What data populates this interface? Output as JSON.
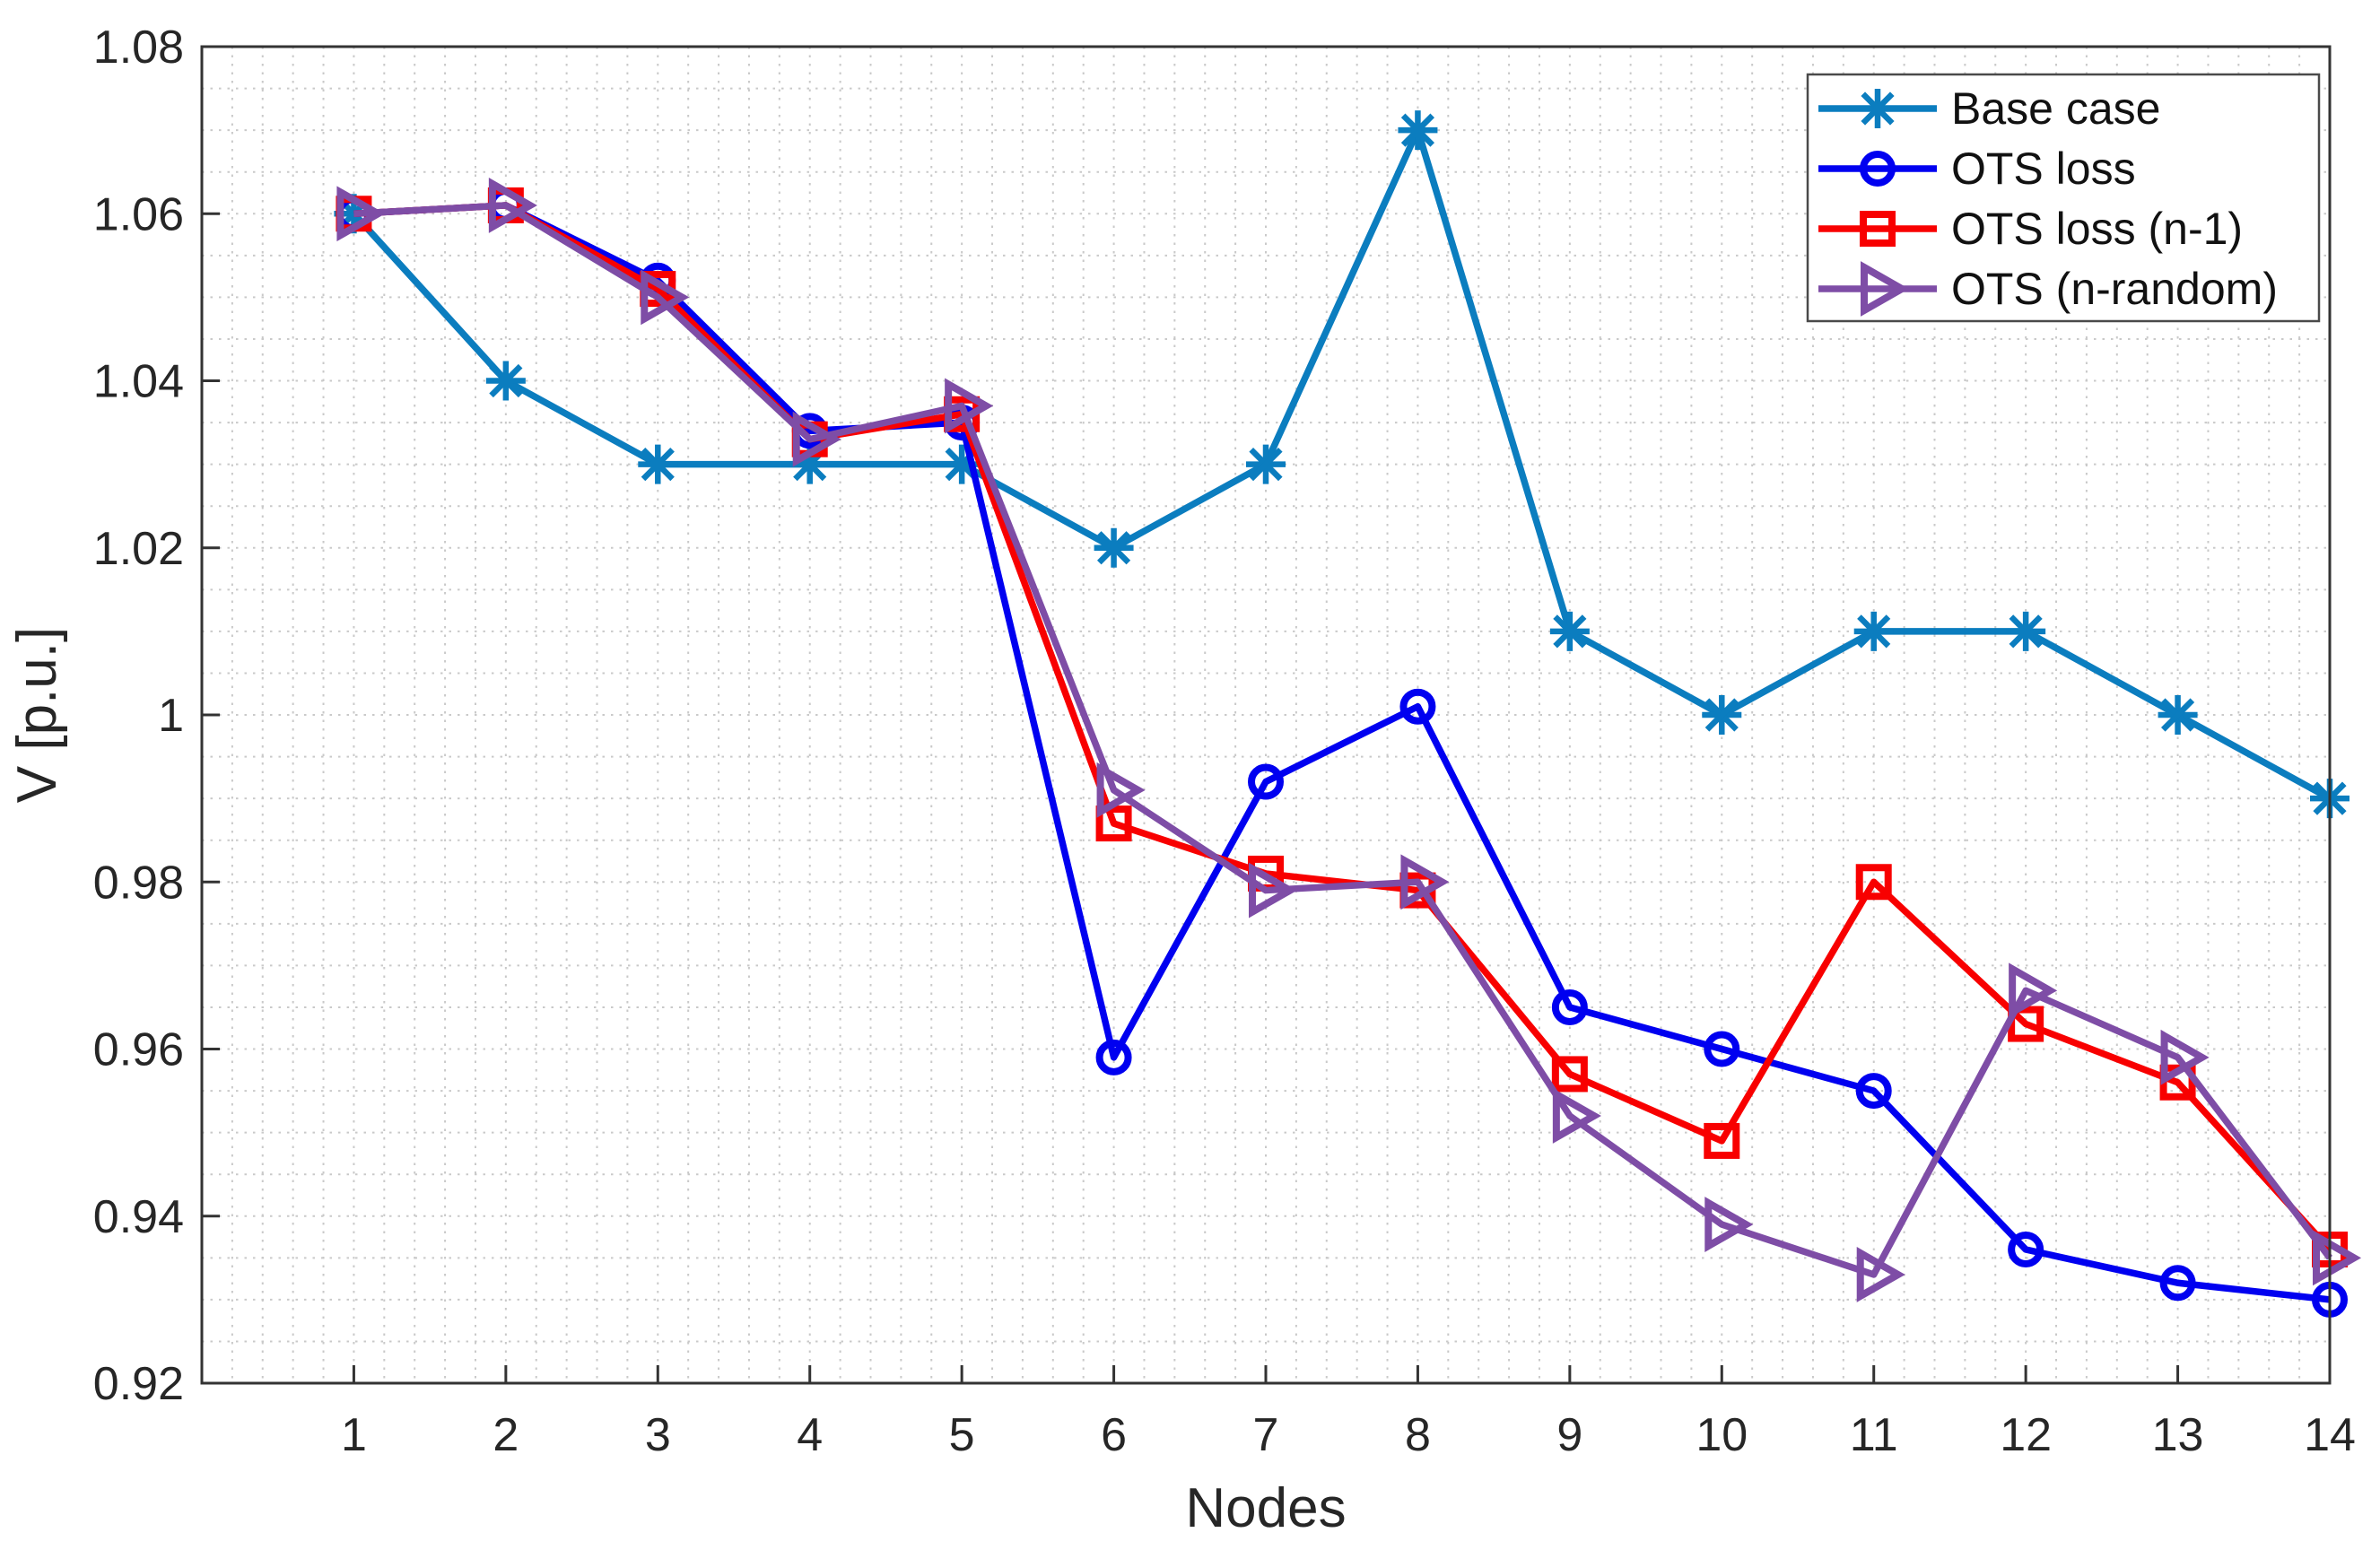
{
  "figure": {
    "background": "#ffffff",
    "axis_color": "#333333",
    "grid_color": "#c9c9c9",
    "text_color": "#262626"
  },
  "chart_data": {
    "type": "line",
    "title": "",
    "xlabel": "Nodes",
    "ylabel": "V [p.u.]",
    "categories": [
      1,
      2,
      3,
      4,
      5,
      6,
      7,
      8,
      9,
      10,
      11,
      12,
      13,
      14
    ],
    "xlim": [
      0,
      14
    ],
    "ylim": [
      0.92,
      1.08
    ],
    "ytick_step": 0.02,
    "ytick_labels": [
      "0.92",
      "0.94",
      "0.96",
      "0.98",
      "1",
      "1.02",
      "1.04",
      "1.06",
      "1.08"
    ],
    "xtick_labels": [
      "1",
      "2",
      "3",
      "4",
      "5",
      "6",
      "7",
      "8",
      "9",
      "10",
      "11",
      "12",
      "13",
      "14"
    ],
    "grid": "minor-dotted-both-axes",
    "legend_position": "top-right-inside",
    "series": [
      {
        "name": "Base case",
        "color": "#0b7dbf",
        "marker": "asterisk",
        "values": [
          1.06,
          1.04,
          1.03,
          1.03,
          1.03,
          1.02,
          1.03,
          1.07,
          1.01,
          1.0,
          1.01,
          1.01,
          1.0,
          0.99
        ]
      },
      {
        "name": "OTS loss",
        "color": "#0000f0",
        "marker": "circle",
        "values": [
          1.06,
          1.061,
          1.052,
          1.034,
          1.035,
          0.959,
          0.992,
          1.001,
          0.965,
          0.96,
          0.955,
          0.936,
          0.932,
          0.93
        ]
      },
      {
        "name": "OTS loss (n-1)",
        "color": "#f80000",
        "marker": "square",
        "values": [
          1.06,
          1.061,
          1.051,
          1.033,
          1.036,
          0.987,
          0.981,
          0.979,
          0.957,
          0.949,
          0.98,
          0.963,
          0.956,
          0.936
        ]
      },
      {
        "name": "OTS (n-random)",
        "color": "#7e4da6",
        "marker": "triangle-right",
        "values": [
          1.06,
          1.061,
          1.05,
          1.033,
          1.037,
          0.991,
          0.979,
          0.98,
          0.952,
          0.939,
          0.933,
          0.967,
          0.959,
          0.935
        ]
      }
    ]
  }
}
